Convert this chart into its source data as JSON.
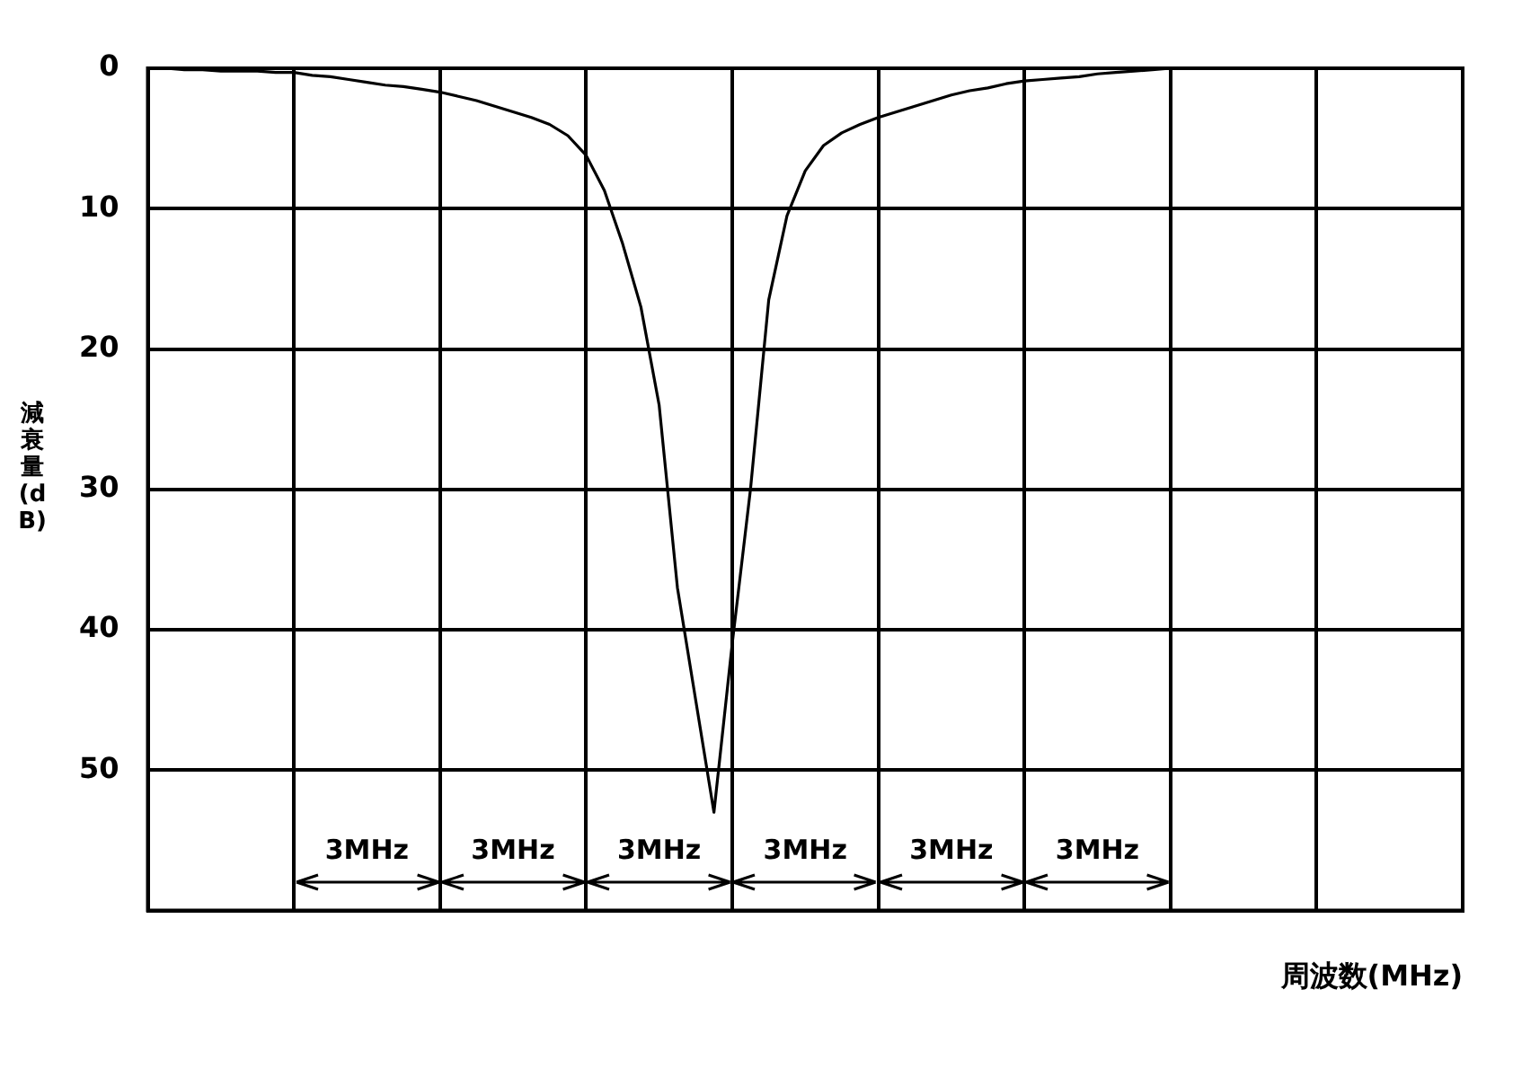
{
  "chart_data": {
    "type": "line",
    "xlabel": "周波数(MHz)",
    "ylabel": "減衰量(dB)",
    "categories": [
      null,
      null,
      null,
      null,
      null,
      null,
      null,
      null,
      null,
      null,
      null,
      null,
      null,
      null,
      null,
      null,
      null,
      null,
      null,
      null,
      null,
      null,
      null,
      null,
      null,
      null,
      null,
      null,
      null,
      null,
      null,
      null,
      null,
      null,
      null,
      null,
      null,
      null,
      null,
      null,
      null,
      null,
      null,
      null,
      null,
      null,
      null,
      null,
      null,
      null,
      null,
      null,
      null,
      null,
      null,
      null,
      null,
      null,
      null,
      null,
      null,
      null,
      null,
      null,
      null,
      null,
      null,
      null,
      null,
      null,
      null,
      null,
      null
    ],
    "series": [
      {
        "color": "#000000",
        "values": [
          0,
          0,
          0.1,
          0.1,
          0.2,
          0.2,
          0.2,
          0.3,
          0.3,
          0.5,
          0.6,
          0.8,
          1.0,
          1.2,
          1.3,
          1.5,
          1.7,
          2.0,
          2.3,
          2.7,
          3.1,
          3.5,
          4.0,
          4.8,
          6.2,
          8.7,
          12.5,
          17,
          24,
          37,
          45,
          53,
          41,
          30,
          16.5,
          10.5,
          7.3,
          5.5,
          4.6,
          4.0,
          3.5,
          3.1,
          2.7,
          2.3,
          1.9,
          1.6,
          1.4,
          1.1,
          0.9,
          0.8,
          0.7,
          0.6,
          0.4,
          0.3,
          0.2,
          0.1,
          0,
          0,
          0,
          0,
          0,
          0,
          0,
          0,
          0,
          0,
          0,
          0,
          0,
          0,
          0,
          null,
          null
        ]
      }
    ],
    "ylim": [
      60,
      0
    ],
    "yticks": [
      0,
      10,
      20,
      30,
      40,
      50,
      {
        "value": 60,
        "label": null
      }
    ],
    "grid": true,
    "marker": "none",
    "line_style": "solid",
    "annotations": [
      "3MHz",
      "3MHz",
      "3MHz",
      "3MHz",
      "3MHz",
      "3MHz"
    ]
  }
}
